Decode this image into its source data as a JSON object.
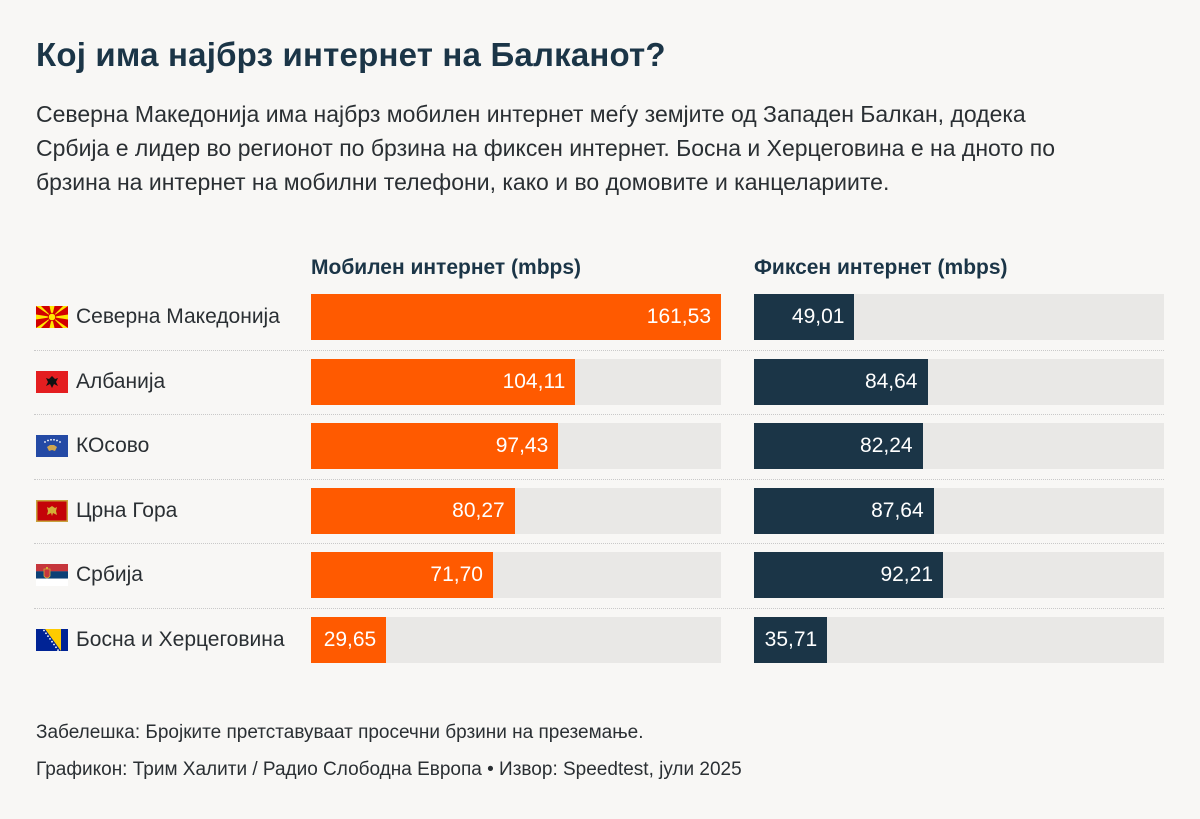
{
  "title": "Кој има најбрз интернет на Балканот?",
  "subtitle_lines": [
    "Северна Македонија има најбрз мобилен интернет меѓу земјите од Западен Балкан, додека",
    "Србија е лидер во регионот по брзина на фиксен интернет. Босна и Херцеговина е на дното по",
    "брзина на интернет на мобилни телефони, како и во домовите и канцелариите."
  ],
  "note": "Забелешка: Бројките претставуваат просечни брзини на преземање.",
  "credit": "Графикон: Трим Халити / Радио Слободна Европа • Извор: Speedtest, јули 2025",
  "colors": {
    "mobile": "#ff5a00",
    "fixed": "#1b3547",
    "track": "#e9e8e6",
    "background": "#f8f7f5"
  },
  "chart_data": {
    "type": "bar",
    "orientation": "horizontal",
    "categories": [
      "Северна Македонија",
      "Албанија",
      "КОсово",
      "Црна Гора",
      "Србија",
      "Босна и Херцеговина"
    ],
    "flags": [
      "north-macedonia-flag-icon",
      "albania-flag-icon",
      "kosovo-flag-icon",
      "montenegro-flag-icon",
      "serbia-flag-icon",
      "bosnia-flag-icon"
    ],
    "series": [
      {
        "name": "Мобилен интернет (mbps)",
        "values": [
          161.53,
          104.11,
          97.43,
          80.27,
          71.7,
          29.65
        ],
        "labels": [
          "161,53",
          "104,11",
          "97,43",
          "80,27",
          "71,70",
          "29,65"
        ],
        "max": 161.53
      },
      {
        "name": "Фиксен интернет (mbps)",
        "values": [
          49.01,
          84.64,
          82.24,
          87.64,
          92.21,
          35.71
        ],
        "labels": [
          "49,01",
          "84,64",
          "82,24",
          "87,64",
          "92,21",
          "35,71"
        ],
        "max": 200
      }
    ],
    "grid": false,
    "legend": "column headers"
  }
}
